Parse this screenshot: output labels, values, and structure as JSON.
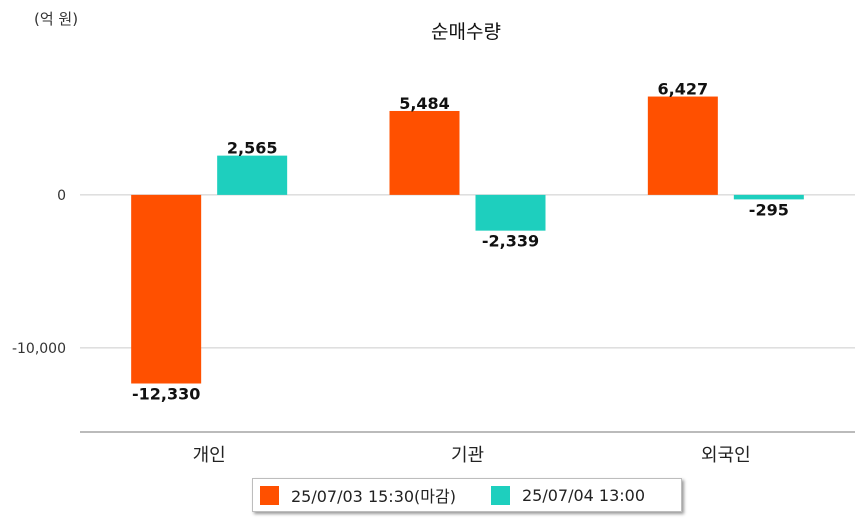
{
  "unit_label": "(억 원)",
  "chart_data": {
    "type": "bar",
    "title": "순매수량",
    "categories": [
      "개인",
      "기관",
      "외국인"
    ],
    "series": [
      {
        "name": "25/07/03 15:30(마감)",
        "color": "#ff5000",
        "values": [
          -12330,
          5484,
          6427
        ]
      },
      {
        "name": "25/07/04 13:00",
        "color": "#1ecfbe",
        "values": [
          2565,
          -2339,
          -295
        ]
      }
    ],
    "data_labels": [
      [
        "-12,330",
        "5,484",
        "6,427"
      ],
      [
        "2,565",
        "-2,339",
        "-295"
      ]
    ],
    "y_ticks": [
      {
        "value": 0,
        "label": "0"
      },
      {
        "value": -10000,
        "label": "-10,000"
      }
    ],
    "ylim": [
      -15500,
      9600
    ],
    "grid": true,
    "legend_position": "bottom"
  }
}
